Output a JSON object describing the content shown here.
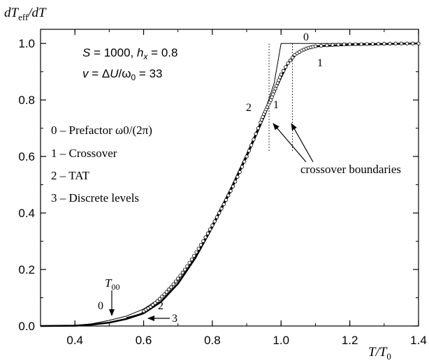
{
  "chart_data": {
    "type": "line",
    "title": "",
    "ylabel": "dT_eff/dT",
    "xlabel": "T/T_0",
    "xlim": [
      0.3,
      1.4
    ],
    "ylim": [
      0.0,
      1.05
    ],
    "x_ticks": [
      "0.4",
      "0.6",
      "0.8",
      "1.0",
      "1.2",
      "1.4"
    ],
    "x_tick_values": [
      0.4,
      0.6,
      0.8,
      1.0,
      1.2,
      1.4
    ],
    "y_ticks": [
      "0.0",
      "0.2",
      "0.4",
      "0.6",
      "0.8",
      "1.0"
    ],
    "y_tick_values": [
      0.0,
      0.2,
      0.4,
      0.6,
      0.8,
      1.0
    ],
    "grid": false,
    "params": {
      "line1": "S = 1000,  h_x = 0.8",
      "line2": "v = ΔU/ω_0 = 33"
    },
    "legend": [
      "0 – Prefactor ω0/(2π)",
      "1 – Crossover",
      "2 – TAT",
      "3 – Discrete levels"
    ],
    "annotations": {
      "crossover": "crossover boundaries",
      "t00": "T00",
      "curve_labels": [
        "0",
        "1",
        "2",
        "1",
        "0",
        "2",
        "3"
      ]
    },
    "crossover_boundaries": [
      0.965,
      1.033
    ],
    "series": [
      {
        "name": "0",
        "style": "thin-line",
        "x": [
          0.3,
          0.4,
          0.45,
          0.5,
          0.55,
          0.6,
          0.65,
          0.7,
          0.75,
          0.8,
          0.85,
          0.9,
          0.95,
          0.98,
          1.0,
          1.1,
          1.2,
          1.3,
          1.4
        ],
        "y": [
          0.0,
          0.002,
          0.008,
          0.02,
          0.035,
          0.06,
          0.1,
          0.16,
          0.25,
          0.36,
          0.48,
          0.61,
          0.75,
          0.86,
          1.0,
          1.0,
          1.0,
          1.0,
          1.0
        ]
      },
      {
        "name": "1",
        "style": "thick-line",
        "x": [
          0.3,
          0.4,
          0.45,
          0.5,
          0.55,
          0.6,
          0.65,
          0.7,
          0.75,
          0.8,
          0.85,
          0.9,
          0.95,
          0.97,
          1.0,
          1.02,
          1.05,
          1.1,
          1.2,
          1.3,
          1.4
        ],
        "y": [
          0.0,
          0.001,
          0.005,
          0.012,
          0.025,
          0.045,
          0.085,
          0.15,
          0.24,
          0.35,
          0.47,
          0.6,
          0.74,
          0.8,
          0.88,
          0.93,
          0.97,
          0.99,
          0.995,
          0.998,
          1.0
        ]
      },
      {
        "name": "2",
        "style": "circles",
        "x": [
          0.6,
          0.62,
          0.64,
          0.66,
          0.68,
          0.7,
          0.72,
          0.74,
          0.76,
          0.78,
          0.8,
          0.82,
          0.84,
          0.86,
          0.88,
          0.9,
          0.92,
          0.94,
          0.95,
          0.96,
          0.97,
          0.98,
          0.99,
          1.0,
          1.02,
          1.04,
          1.06,
          1.08,
          1.1,
          1.15,
          1.2,
          1.25,
          1.3,
          1.35,
          1.4
        ],
        "y": [
          0.052,
          0.068,
          0.088,
          0.112,
          0.138,
          0.168,
          0.2,
          0.236,
          0.274,
          0.314,
          0.356,
          0.4,
          0.446,
          0.494,
          0.545,
          0.6,
          0.66,
          0.72,
          0.75,
          0.775,
          0.8,
          0.83,
          0.86,
          0.89,
          0.93,
          0.96,
          0.975,
          0.985,
          0.99,
          0.995,
          0.997,
          0.998,
          0.999,
          1.0,
          1.0
        ]
      },
      {
        "name": "3",
        "style": "thick-line",
        "x": [
          0.55,
          0.57,
          0.59,
          0.6
        ],
        "y": [
          0.028,
          0.034,
          0.041,
          0.047
        ]
      }
    ]
  }
}
